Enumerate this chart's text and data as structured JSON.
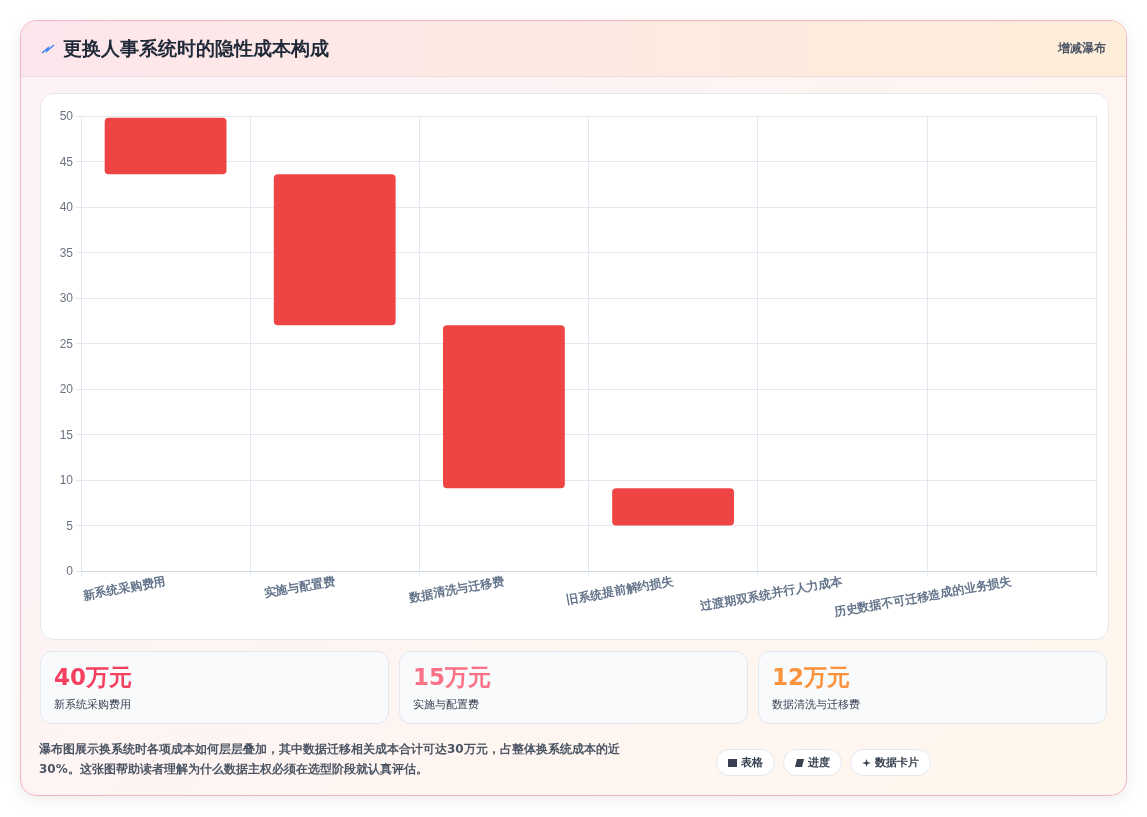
{
  "chart_data": {
    "type": "bar",
    "title": "更换人事系统时的隐性成本构成",
    "subtitle": "增减瀑布",
    "categories": [
      "新系统采购费用",
      "实施与配置费",
      "数据清洗与迁移费",
      "旧系统提前解约损失",
      "过渡期双系统并行人力成本",
      "历史数据不可迁移造成的业务损失"
    ],
    "values": [
      6.2,
      16.6,
      17.9,
      4.1,
      null,
      null
    ],
    "base": [
      43.6,
      27,
      9.1,
      5,
      null,
      null
    ],
    "color": "#ef4444",
    "ylim": [
      0,
      50
    ],
    "yticks": [
      0,
      5,
      10,
      15,
      20,
      25,
      30,
      35,
      40,
      45,
      50
    ],
    "grid": true,
    "annotations": [
      "40万元",
      "新系统采购费用",
      "15万元",
      "实施与配置费",
      "12万元",
      "数据清洗与迁移费",
      "瀑布图展示换系统时各项成本如何层层叠加，其中数据迁移相关成本合计可达30万元，占整体换系统成本的近30%。这张图帮助读者理解为什么数据主权必须在选型阶段就认真评估。",
      "表格",
      "进度",
      "数据卡片"
    ]
  }
}
